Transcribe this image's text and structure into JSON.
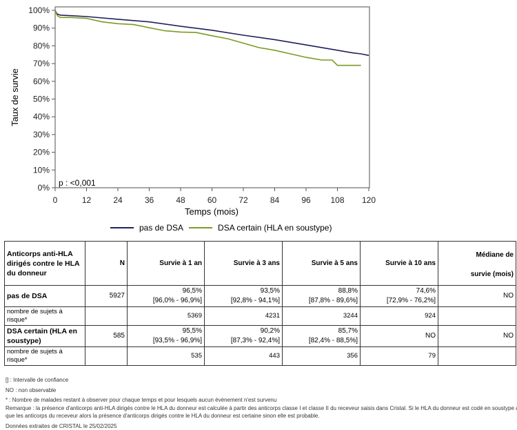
{
  "chart_data": {
    "type": "line",
    "title": "",
    "xlabel": "Temps (mois)",
    "ylabel": "Taux de survie",
    "xlim": [
      0,
      120
    ],
    "ylim": [
      0,
      100
    ],
    "xticks": [
      0,
      12,
      24,
      36,
      48,
      60,
      72,
      84,
      96,
      108,
      120
    ],
    "yticks": [
      0,
      10,
      20,
      30,
      40,
      50,
      60,
      70,
      80,
      90,
      100
    ],
    "ytick_labels": [
      "0%",
      "10%",
      "20%",
      "30%",
      "40%",
      "50%",
      "60%",
      "70%",
      "80%",
      "90%",
      "100%"
    ],
    "grid": false,
    "legend_position": "bottom",
    "annotation": "p : <0,001",
    "series": [
      {
        "name": "pas de DSA",
        "color": "#1f1f5c",
        "x": [
          0,
          0.5,
          1,
          2,
          6,
          12,
          24,
          36,
          48,
          60,
          72,
          84,
          96,
          108,
          114,
          117,
          120
        ],
        "y": [
          100,
          98.5,
          97.8,
          97.3,
          97.0,
          96.5,
          95.0,
          93.5,
          91.0,
          88.8,
          86.0,
          83.5,
          80.5,
          77.5,
          76.0,
          75.5,
          74.6
        ]
      },
      {
        "name": "DSA certain (HLA en soustype)",
        "color": "#7a9a22",
        "x": [
          0,
          0.5,
          1,
          2,
          6,
          12,
          18,
          24,
          30,
          36,
          42,
          48,
          54,
          60,
          66,
          72,
          78,
          84,
          90,
          96,
          102,
          106,
          108,
          117
        ],
        "y": [
          100,
          98,
          96.8,
          96.0,
          96.0,
          95.5,
          93.5,
          92.5,
          92.0,
          90.2,
          88.5,
          87.8,
          87.5,
          85.7,
          84.0,
          81.5,
          79.0,
          77.5,
          75.5,
          73.5,
          72.0,
          72.0,
          69.0,
          69.0
        ]
      }
    ]
  },
  "table": {
    "headers": [
      "Anticorps anti-HLA dirigés contre le HLA du donneur",
      "N",
      "Survie à 1 an",
      "Survie à 3 ans",
      "Survie à 5 ans",
      "Survie à 10 ans"
    ],
    "median_header_1": "Médiane de",
    "median_header_2": "survie (mois)",
    "groups": [
      {
        "label": "pas de DSA",
        "n": "5927",
        "surv": [
          {
            "value": "96,5%",
            "ci": "[96,0% - 96,9%]"
          },
          {
            "value": "93,5%",
            "ci": "[92,8% - 94,1%]"
          },
          {
            "value": "88,8%",
            "ci": "[87,8% - 89,6%]"
          },
          {
            "value": "74,6%",
            "ci": "[72,9% - 76,2%]"
          }
        ],
        "median": "NO",
        "risk_label": "nombre de sujets à risque*",
        "risk": [
          "5369",
          "4231",
          "3244",
          "924"
        ]
      },
      {
        "label": "DSA certain (HLA en soustype)",
        "n": "585",
        "surv": [
          {
            "value": "95,5%",
            "ci": "[93,5% - 96,9%]"
          },
          {
            "value": "90,2%",
            "ci": "[87,3% - 92,4%]"
          },
          {
            "value": "85,7%",
            "ci": "[82,4% - 88,5%]"
          },
          {
            "value": "NO",
            "ci": ""
          }
        ],
        "median": "NO",
        "risk_label": "nombre de sujets à risque*",
        "risk": [
          "535",
          "443",
          "356",
          "79"
        ]
      }
    ]
  },
  "notes": {
    "ci": "[] : Intervalle de confiance",
    "no": "NO : non observable",
    "risk": "* : Nombre de malades restant à observer pour chaque temps et pour lesquels aucun évènement n'est survenu",
    "remark_1": "Remarque : la présence d'anticorps anti-HLA dirigés contre le HLA du donneur est calculée à partir des anticorps classe I et classe II du receveur saisis dans Cristal. Si le HLA du donneur est codé en soustype ainsi",
    "remark_2": "que les anticorps du receveur alors la présence d'anticorps dirigés contre le HLA du donneur est certaine sinon elle est probable.",
    "source": "Données extraites de CRISTAL le 25/02/2025"
  }
}
